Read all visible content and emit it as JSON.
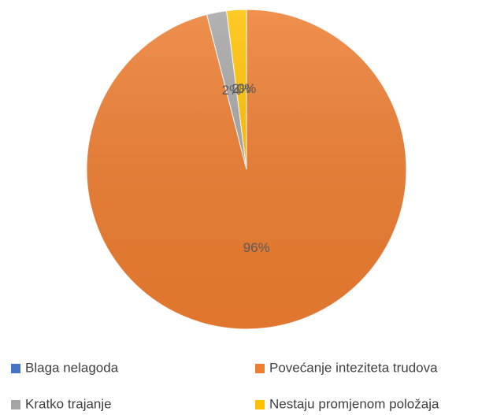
{
  "chart_data": {
    "type": "pie",
    "categories": [
      "Blaga nelagoda",
      "Povećanje inteziteta trudova",
      "Kratko trajanje",
      "Nestaju promjenom položaja"
    ],
    "values": [
      0,
      96,
      2,
      2
    ],
    "value_labels": [
      "0%",
      "96%",
      "2%",
      "2%"
    ],
    "colors": [
      "#4472c4",
      "#ed7d31",
      "#a5a5a5",
      "#ffc000"
    ],
    "legend": "bottom"
  }
}
